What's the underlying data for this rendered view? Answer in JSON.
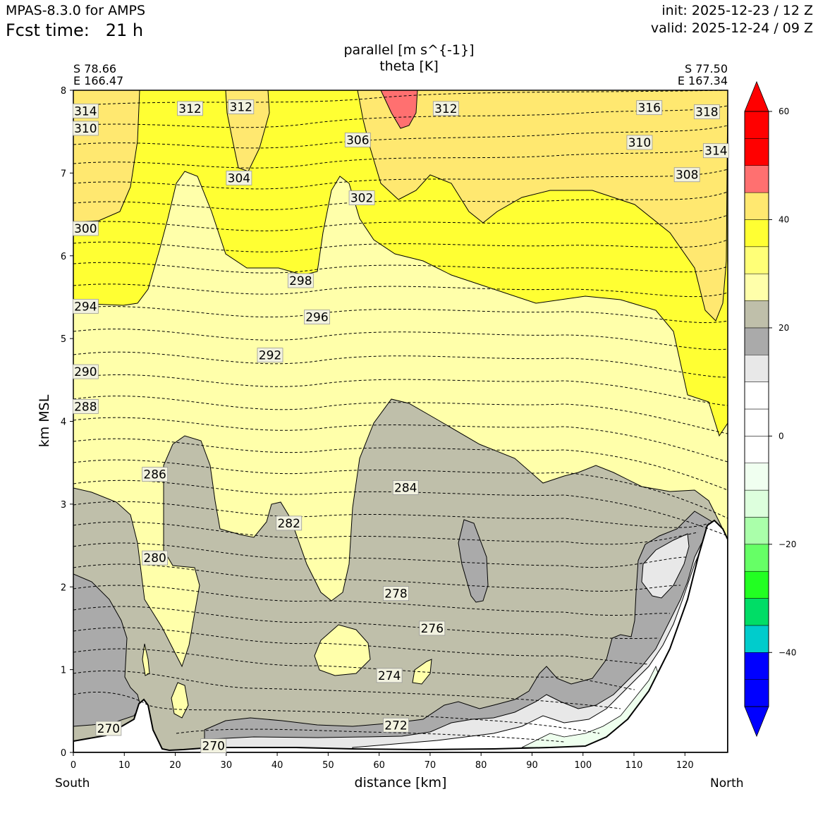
{
  "header": {
    "model": "MPAS-8.3.0 for AMPS",
    "fcst_label": "Fcst time:",
    "fcst_value": "21 h",
    "init": "init: 2025-12-23 / 12 Z",
    "valid": "valid: 2025-12-24 / 09 Z"
  },
  "endpoints": {
    "left_lat": "S 78.66",
    "left_lon": "E 166.47",
    "right_lat": "S 77.50",
    "right_lon": "E 167.34",
    "left_dir": "South",
    "right_dir": "North"
  },
  "chart_data": {
    "type": "heatmap",
    "title_line1": "parallel [m s^{-1}]",
    "title_line2": "theta [K]",
    "xlabel": "distance [km]",
    "ylabel": "km MSL",
    "xlim": [
      0,
      128.4
    ],
    "ylim": [
      0,
      8
    ],
    "x_ticks": [
      0,
      10,
      20,
      30,
      40,
      50,
      60,
      70,
      80,
      90,
      100,
      110,
      120
    ],
    "y_ticks": [
      0,
      1,
      2,
      3,
      4,
      5,
      6,
      7,
      8
    ],
    "grid": false,
    "colorbar": {
      "placement": "right",
      "ticks": [
        60,
        40,
        20,
        0,
        -20,
        -40
      ],
      "tick_labels": [
        "60",
        "40",
        "20",
        "0",
        "−20",
        "−40"
      ],
      "extend": "both",
      "levels": [
        -50,
        -45,
        -40,
        -35,
        -30,
        -25,
        -20,
        -15,
        -10,
        -5,
        0,
        5,
        10,
        15,
        20,
        25,
        30,
        35,
        40,
        45,
        50,
        55,
        60
      ],
      "colors": [
        "#0000ff",
        "#0000ff",
        "#00cccc",
        "#00dd66",
        "#22ff22",
        "#66ff66",
        "#aaffaa",
        "#ddffdd",
        "#f0fff0",
        "#ffffff",
        "#ffffff",
        "#ffffff",
        "#e8e8e8",
        "#aaaaaa",
        "#bfbfaa",
        "#ffffaa",
        "#ffff77",
        "#ffff33",
        "#ffe870",
        "#ff7070",
        "#ff0000",
        "#ff0000"
      ],
      "under_color": "#0000ff",
      "over_color": "#ff0000"
    },
    "theta_contour_labels": [
      {
        "value": "314",
        "x": 2.4,
        "y": 7.75
      },
      {
        "value": "312",
        "x": 22.9,
        "y": 7.78
      },
      {
        "value": "312",
        "x": 32.9,
        "y": 7.8
      },
      {
        "value": "310",
        "x": 2.4,
        "y": 7.54
      },
      {
        "value": "306",
        "x": 55.8,
        "y": 7.4
      },
      {
        "value": "312",
        "x": 73.1,
        "y": 7.78
      },
      {
        "value": "316",
        "x": 113.0,
        "y": 7.79
      },
      {
        "value": "318",
        "x": 124.3,
        "y": 7.74
      },
      {
        "value": "310",
        "x": 111.1,
        "y": 7.37
      },
      {
        "value": "314",
        "x": 126.1,
        "y": 7.27
      },
      {
        "value": "308",
        "x": 120.4,
        "y": 6.98
      },
      {
        "value": "304",
        "x": 32.5,
        "y": 6.94
      },
      {
        "value": "302",
        "x": 56.6,
        "y": 6.7
      },
      {
        "value": "300",
        "x": 2.4,
        "y": 6.33
      },
      {
        "value": "298",
        "x": 44.6,
        "y": 5.7
      },
      {
        "value": "294",
        "x": 2.4,
        "y": 5.39
      },
      {
        "value": "296",
        "x": 47.8,
        "y": 5.26
      },
      {
        "value": "292",
        "x": 38.6,
        "y": 4.8
      },
      {
        "value": "290",
        "x": 2.4,
        "y": 4.6
      },
      {
        "value": "288",
        "x": 2.4,
        "y": 4.18
      },
      {
        "value": "286",
        "x": 16.0,
        "y": 3.36
      },
      {
        "value": "284",
        "x": 65.2,
        "y": 3.2
      },
      {
        "value": "282",
        "x": 42.3,
        "y": 2.77
      },
      {
        "value": "280",
        "x": 16.0,
        "y": 2.35
      },
      {
        "value": "278",
        "x": 63.3,
        "y": 1.92
      },
      {
        "value": "276",
        "x": 70.4,
        "y": 1.5
      },
      {
        "value": "274",
        "x": 62.0,
        "y": 0.93
      },
      {
        "value": "272",
        "x": 63.3,
        "y": 0.33
      },
      {
        "value": "270",
        "x": 6.9,
        "y": 0.29
      },
      {
        "value": "270",
        "x": 27.5,
        "y": 0.08
      }
    ]
  }
}
